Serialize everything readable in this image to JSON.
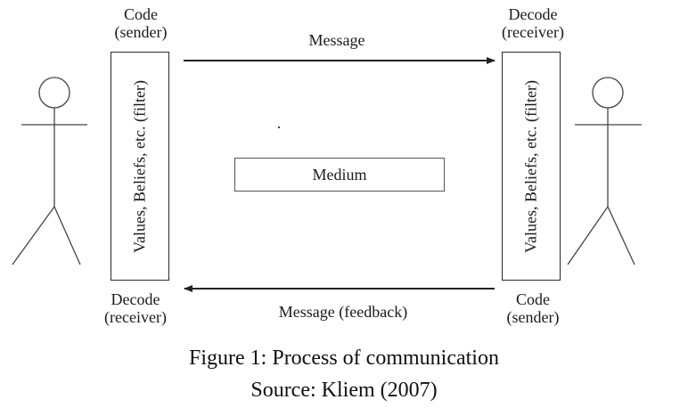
{
  "sender_side": {
    "top_label": [
      "Code",
      "(sender)"
    ],
    "filter_label": "Values, Beliefs, etc. (filter)",
    "bottom_label": [
      "Decode",
      "(receiver)"
    ]
  },
  "receiver_side": {
    "top_label": [
      "Decode",
      "(receiver)"
    ],
    "filter_label": "Values, Beliefs, etc. (filter)",
    "bottom_label": [
      "Code",
      "(sender)"
    ]
  },
  "arrows": {
    "message": "Message",
    "feedback": "Message (feedback)"
  },
  "medium": "Medium",
  "caption": {
    "title": "Figure 1: Process of communication",
    "source": "Source: Kliem (2007)"
  }
}
